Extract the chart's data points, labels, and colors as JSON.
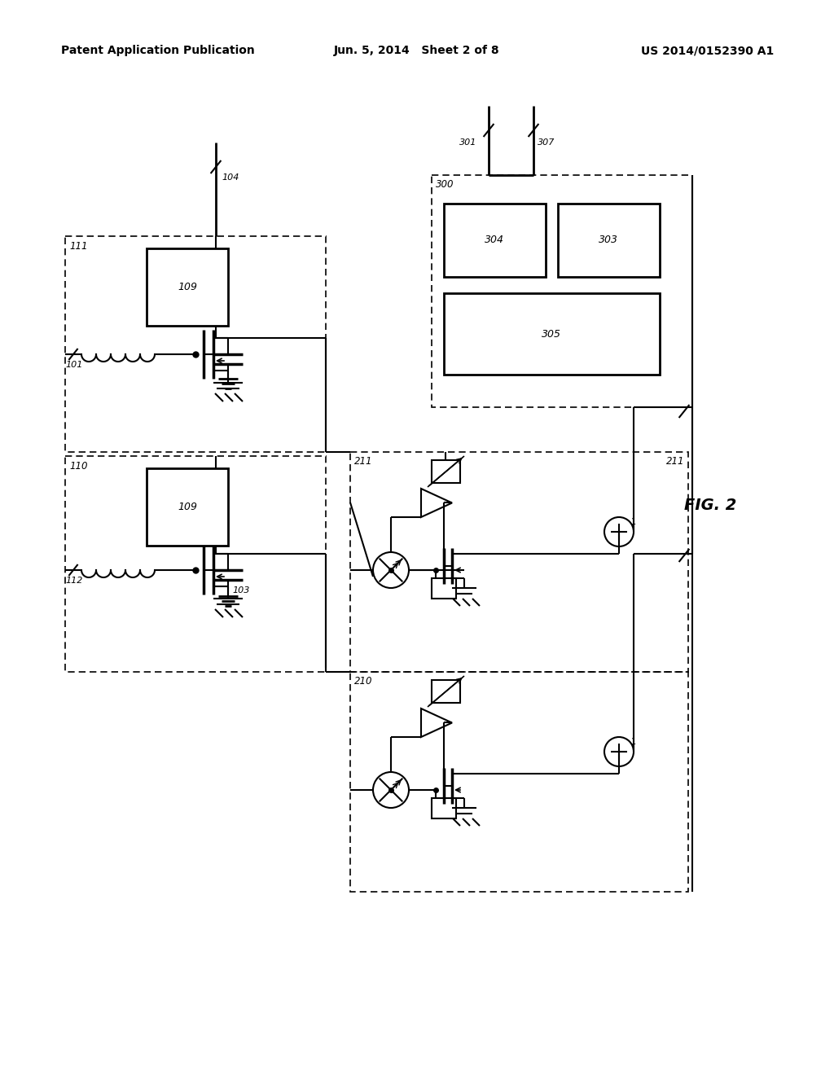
{
  "bg_color": "#ffffff",
  "header_left": "Patent Application Publication",
  "header_mid": "Jun. 5, 2014   Sheet 2 of 8",
  "header_right": "US 2014/0152390 A1"
}
